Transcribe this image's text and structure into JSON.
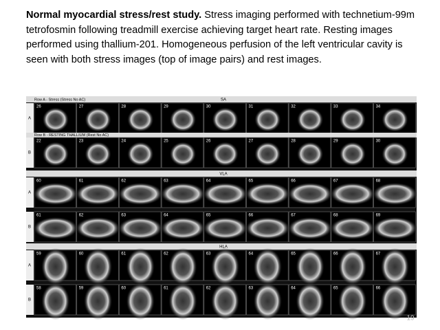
{
  "caption": {
    "bold": "Normal myocardial stress/rest study.",
    "text": "Stress imaging performed with technetium-99m tetrofosmin following treadmill exercise achieving target heart rate. Resting images performed using thallium-201. Homogeneous perfusion of the left ventricular cavity is seen with both stress images (top of image pairs) and rest images."
  },
  "image": {
    "sections": [
      {
        "title": "SA",
        "rows": [
          {
            "label": "A",
            "header": "Row A - Stress (Stress No AC)",
            "frames": [
              26,
              27,
              28,
              29,
              30,
              31,
              32,
              33,
              34
            ]
          },
          {
            "label": "B",
            "header": "Row B - RESTING THALLIUM (Rest No AC)",
            "frames": [
              22,
              23,
              24,
              25,
              26,
              27,
              28,
              29,
              30
            ]
          }
        ]
      },
      {
        "title": "VLA",
        "rows": [
          {
            "label": "A",
            "frames": [
              60,
              61,
              62,
              63,
              64,
              65,
              66,
              67,
              68
            ]
          },
          {
            "label": "B",
            "frames": [
              61,
              62,
              63,
              64,
              65,
              66,
              67,
              68,
              69
            ]
          }
        ]
      },
      {
        "title": "HLA",
        "rows": [
          {
            "label": "A",
            "frames": [
              59,
              60,
              61,
              62,
              63,
              64,
              65,
              66,
              67
            ]
          },
          {
            "label": "B",
            "frames": [
              58,
              59,
              60,
              61,
              62,
              63,
              64,
              65,
              66
            ]
          }
        ]
      }
    ]
  },
  "page_number": "19"
}
